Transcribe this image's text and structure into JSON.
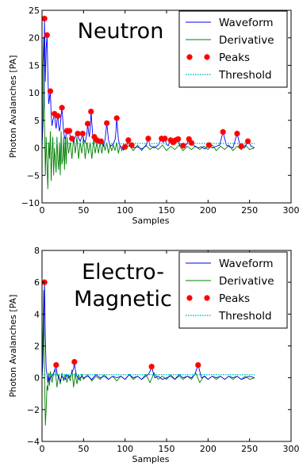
{
  "chart_data": [
    {
      "type": "line",
      "annotation": "Neutron",
      "xlabel": "Samples",
      "ylabel": "Photon Avalanches [PA]",
      "xlim": [
        0,
        300
      ],
      "ylim": [
        -10,
        25
      ],
      "xticks": [
        "0",
        "50",
        "100",
        "150",
        "200",
        "250",
        "300"
      ],
      "yticks": [
        "−10",
        "−5",
        "0",
        "5",
        "10",
        "15",
        "20",
        "25"
      ],
      "legend": {
        "position": "top-right",
        "entries": [
          "Waveform",
          "Derivative",
          "Peaks",
          "Threshold"
        ]
      },
      "colors": {
        "waveform": "#0000ff",
        "derivative": "#008000",
        "peaks": "#ff0000",
        "threshold": "#00bfbf"
      },
      "threshold": 0.8,
      "peaks": {
        "x": [
          3,
          6,
          10,
          15,
          19,
          24,
          30,
          33,
          36,
          43,
          49,
          55,
          59,
          63,
          66,
          71,
          78,
          90,
          100,
          104,
          108,
          128,
          144,
          148,
          155,
          158,
          161,
          164,
          170,
          177,
          180,
          201,
          218,
          235,
          240,
          248
        ],
        "y": [
          23.5,
          20.5,
          10.3,
          6.2,
          5.8,
          7.3,
          3.1,
          3.1,
          1.7,
          2.6,
          2.6,
          4.4,
          6.6,
          2.0,
          1.4,
          1.2,
          4.5,
          5.4,
          0.2,
          1.4,
          0.5,
          1.7,
          1.7,
          1.7,
          1.4,
          1.0,
          1.4,
          1.6,
          0.4,
          1.6,
          0.9,
          0.5,
          2.9,
          2.6,
          0.3,
          1.2
        ]
      },
      "waveform": {
        "x": [
          0,
          2,
          3,
          4,
          5,
          6,
          7,
          8,
          9,
          10,
          11,
          12,
          13,
          14,
          15,
          16,
          17,
          18,
          19,
          20,
          21,
          22,
          23,
          24,
          25,
          26,
          27,
          28,
          29,
          30,
          31,
          32,
          33,
          34,
          35,
          36,
          37,
          38,
          40,
          42,
          43,
          44,
          46,
          48,
          49,
          50,
          52,
          54,
          55,
          56,
          57,
          58,
          59,
          60,
          61,
          62,
          63,
          64,
          65,
          66,
          67,
          68,
          70,
          71,
          72,
          74,
          76,
          77,
          78,
          79,
          80,
          82,
          84,
          86,
          88,
          89,
          90,
          91,
          92,
          94,
          96,
          98,
          100,
          102,
          104,
          106,
          108,
          110,
          115,
          120,
          125,
          128,
          130,
          135,
          140,
          144,
          146,
          148,
          150,
          152,
          155,
          158,
          161,
          164,
          166,
          170,
          174,
          177,
          180,
          184,
          188,
          192,
          196,
          201,
          205,
          210,
          214,
          218,
          222,
          226,
          230,
          235,
          238,
          240,
          244,
          248,
          252,
          256
        ],
        "y": [
          0,
          8,
          23.5,
          12,
          18,
          20.5,
          14,
          8,
          9,
          10.3,
          6,
          4,
          5,
          5.5,
          6.2,
          4.5,
          3.5,
          5,
          5.8,
          4,
          3,
          4,
          6,
          7.3,
          5,
          3,
          2,
          1.5,
          2.5,
          3.1,
          2.5,
          2.8,
          3.1,
          2,
          1.2,
          1.7,
          1.3,
          1.0,
          2.0,
          2.4,
          2.6,
          1.8,
          1.2,
          2.0,
          2.6,
          1.5,
          1.0,
          2.5,
          4.4,
          3.0,
          2.0,
          3.5,
          6.6,
          4.5,
          2.5,
          1.5,
          2.0,
          1.2,
          1.0,
          1.4,
          0.9,
          0.8,
          0.8,
          1.2,
          0.8,
          0.3,
          1.5,
          3.0,
          4.5,
          3.0,
          1.5,
          0.5,
          0.4,
          0.8,
          1.5,
          3.0,
          5.4,
          3.5,
          1.5,
          0.3,
          0.1,
          -0.4,
          0.2,
          0.5,
          1.4,
          0.3,
          0.5,
          0.0,
          0.2,
          -0.2,
          0.3,
          1.7,
          0.4,
          0.0,
          0.5,
          1.7,
          1.0,
          1.7,
          0.6,
          0.4,
          1.4,
          1.0,
          1.4,
          1.6,
          0.5,
          0.4,
          0.6,
          1.6,
          0.9,
          0.3,
          0.0,
          0.2,
          -0.2,
          0.5,
          0.0,
          0.3,
          0.5,
          2.9,
          0.5,
          0.2,
          0.0,
          2.6,
          0.8,
          0.3,
          0.0,
          1.2,
          0.3,
          0.0
        ]
      },
      "derivative": {
        "x": [
          0,
          1,
          2,
          3,
          4,
          5,
          6,
          7,
          8,
          9,
          10,
          11,
          12,
          13,
          14,
          15,
          16,
          17,
          18,
          19,
          20,
          21,
          22,
          23,
          24,
          25,
          26,
          27,
          28,
          29,
          30,
          32,
          34,
          36,
          38,
          40,
          42,
          44,
          46,
          48,
          50,
          52,
          54,
          56,
          58,
          60,
          62,
          64,
          66,
          68,
          70,
          72,
          74,
          76,
          78,
          80,
          82,
          84,
          86,
          88,
          90,
          92,
          94,
          96,
          98,
          100,
          105,
          110,
          115,
          120,
          125,
          130,
          135,
          140,
          145,
          150,
          155,
          160,
          165,
          170,
          175,
          180,
          185,
          190,
          195,
          200,
          205,
          210,
          215,
          220,
          225,
          230,
          235,
          240,
          245,
          250,
          256
        ],
        "y": [
          0,
          15,
          20,
          5,
          -5,
          2,
          -3,
          -7.5,
          1,
          -2,
          3,
          -6,
          -1,
          2,
          -5,
          0,
          -2,
          -4.5,
          2,
          -2,
          -4,
          1,
          -5,
          3,
          -3,
          -2,
          2,
          -4,
          2,
          -3,
          2,
          -1,
          1,
          -2,
          2,
          -1,
          2,
          -2,
          1,
          -1,
          2,
          -2,
          1,
          -1,
          1,
          -2,
          1.5,
          -1,
          1,
          -1,
          1,
          -1,
          1,
          -0.5,
          1,
          -1,
          0.5,
          -0.5,
          0.5,
          -0.5,
          1,
          -1,
          0.5,
          -0.5,
          0.5,
          -0.3,
          0.5,
          -0.5,
          0.5,
          -0.5,
          0.5,
          -0.3,
          0.3,
          -0.3,
          0.5,
          -0.5,
          0.3,
          -0.3,
          0.5,
          -0.5,
          0.3,
          -0.3,
          0.3,
          -0.3,
          0.3,
          -0.3,
          0.5,
          -0.5,
          0.3,
          -0.3,
          0.5,
          -0.5,
          0.3,
          -0.3,
          0.5,
          -0.3,
          0.0
        ]
      }
    },
    {
      "type": "line",
      "annotation": "Electro-\nMagnetic",
      "xlabel": "Samples",
      "ylabel": "Photon Avalanches [PA]",
      "xlim": [
        0,
        300
      ],
      "ylim": [
        -4,
        8
      ],
      "xticks": [
        "0",
        "50",
        "100",
        "150",
        "200",
        "250",
        "300"
      ],
      "yticks": [
        "−4",
        "−2",
        "0",
        "2",
        "4",
        "6",
        "8"
      ],
      "legend": {
        "position": "top-right",
        "entries": [
          "Waveform",
          "Derivative",
          "Peaks",
          "Threshold"
        ]
      },
      "colors": {
        "waveform": "#0000ff",
        "derivative": "#008000",
        "peaks": "#ff0000",
        "threshold": "#00bfbf"
      },
      "threshold": 0.2,
      "peaks": {
        "x": [
          3,
          17,
          39,
          132,
          188
        ],
        "y": [
          6.0,
          0.8,
          1.0,
          0.7,
          0.8
        ]
      },
      "waveform": {
        "x": [
          0,
          1,
          2,
          3,
          4,
          5,
          6,
          7,
          8,
          9,
          10,
          12,
          14,
          16,
          17,
          18,
          20,
          22,
          24,
          26,
          28,
          30,
          32,
          34,
          36,
          38,
          39,
          40,
          42,
          44,
          46,
          48,
          50,
          55,
          60,
          65,
          70,
          75,
          80,
          85,
          90,
          95,
          100,
          105,
          110,
          115,
          120,
          125,
          128,
          130,
          132,
          134,
          136,
          140,
          145,
          150,
          155,
          160,
          165,
          170,
          175,
          180,
          184,
          186,
          188,
          190,
          192,
          196,
          200,
          205,
          210,
          215,
          220,
          225,
          230,
          235,
          240,
          245,
          250,
          256
        ],
        "y": [
          0,
          1,
          3,
          6.0,
          2.5,
          0.6,
          0.2,
          -0.3,
          0.1,
          -0.2,
          0.0,
          0.1,
          0.3,
          0.6,
          0.8,
          0.3,
          0.0,
          -0.2,
          0.1,
          0.0,
          -0.1,
          0.2,
          0.0,
          0.1,
          0.3,
          0.6,
          1.0,
          0.5,
          0.1,
          -0.1,
          0.0,
          0.1,
          0.0,
          0.1,
          -0.1,
          0.2,
          0.0,
          0.1,
          -0.1,
          0.1,
          0.0,
          0.1,
          -0.1,
          0.2,
          0.0,
          0.1,
          -0.1,
          0.1,
          0.2,
          0.4,
          0.7,
          0.3,
          0.0,
          0.1,
          -0.1,
          0.0,
          0.1,
          -0.1,
          0.2,
          0.0,
          0.1,
          0.0,
          0.2,
          0.5,
          0.8,
          0.4,
          0.0,
          0.1,
          -0.1,
          0.1,
          0.0,
          0.1,
          -0.1,
          0.1,
          0.0,
          0.1,
          -0.1,
          0.0,
          0.1,
          0.0
        ]
      },
      "derivative": {
        "x": [
          0,
          1,
          2,
          3,
          4,
          5,
          6,
          7,
          8,
          9,
          10,
          12,
          14,
          16,
          18,
          20,
          22,
          24,
          26,
          28,
          30,
          32,
          34,
          36,
          38,
          40,
          42,
          44,
          46,
          48,
          50,
          55,
          60,
          65,
          70,
          75,
          80,
          85,
          90,
          95,
          100,
          105,
          110,
          115,
          120,
          125,
          130,
          135,
          140,
          145,
          150,
          155,
          160,
          165,
          170,
          175,
          180,
          185,
          190,
          195,
          200,
          205,
          210,
          215,
          220,
          225,
          230,
          235,
          240,
          245,
          250,
          256
        ],
        "y": [
          0,
          2.5,
          5.5,
          0.5,
          -3.0,
          -2.0,
          -0.5,
          -0.8,
          0.3,
          -0.5,
          0.4,
          -0.3,
          0.3,
          0.5,
          -0.6,
          0.2,
          -0.4,
          0.3,
          -0.2,
          0.2,
          -0.3,
          0.2,
          -0.2,
          0.5,
          -0.6,
          0.3,
          -0.4,
          0.2,
          -0.2,
          0.2,
          -0.1,
          0.2,
          -0.2,
          0.1,
          -0.1,
          0.2,
          -0.1,
          0.1,
          -0.2,
          0.1,
          -0.1,
          0.2,
          -0.1,
          0.1,
          -0.1,
          0.2,
          -0.3,
          0.3,
          -0.1,
          0.1,
          -0.1,
          0.2,
          -0.1,
          0.1,
          -0.1,
          0.1,
          -0.1,
          0.3,
          -0.3,
          0.1,
          -0.1,
          0.1,
          -0.1,
          0.1,
          -0.1,
          0.1,
          -0.1,
          0.1,
          -0.1,
          0.1,
          -0.1,
          0.0
        ]
      }
    }
  ]
}
